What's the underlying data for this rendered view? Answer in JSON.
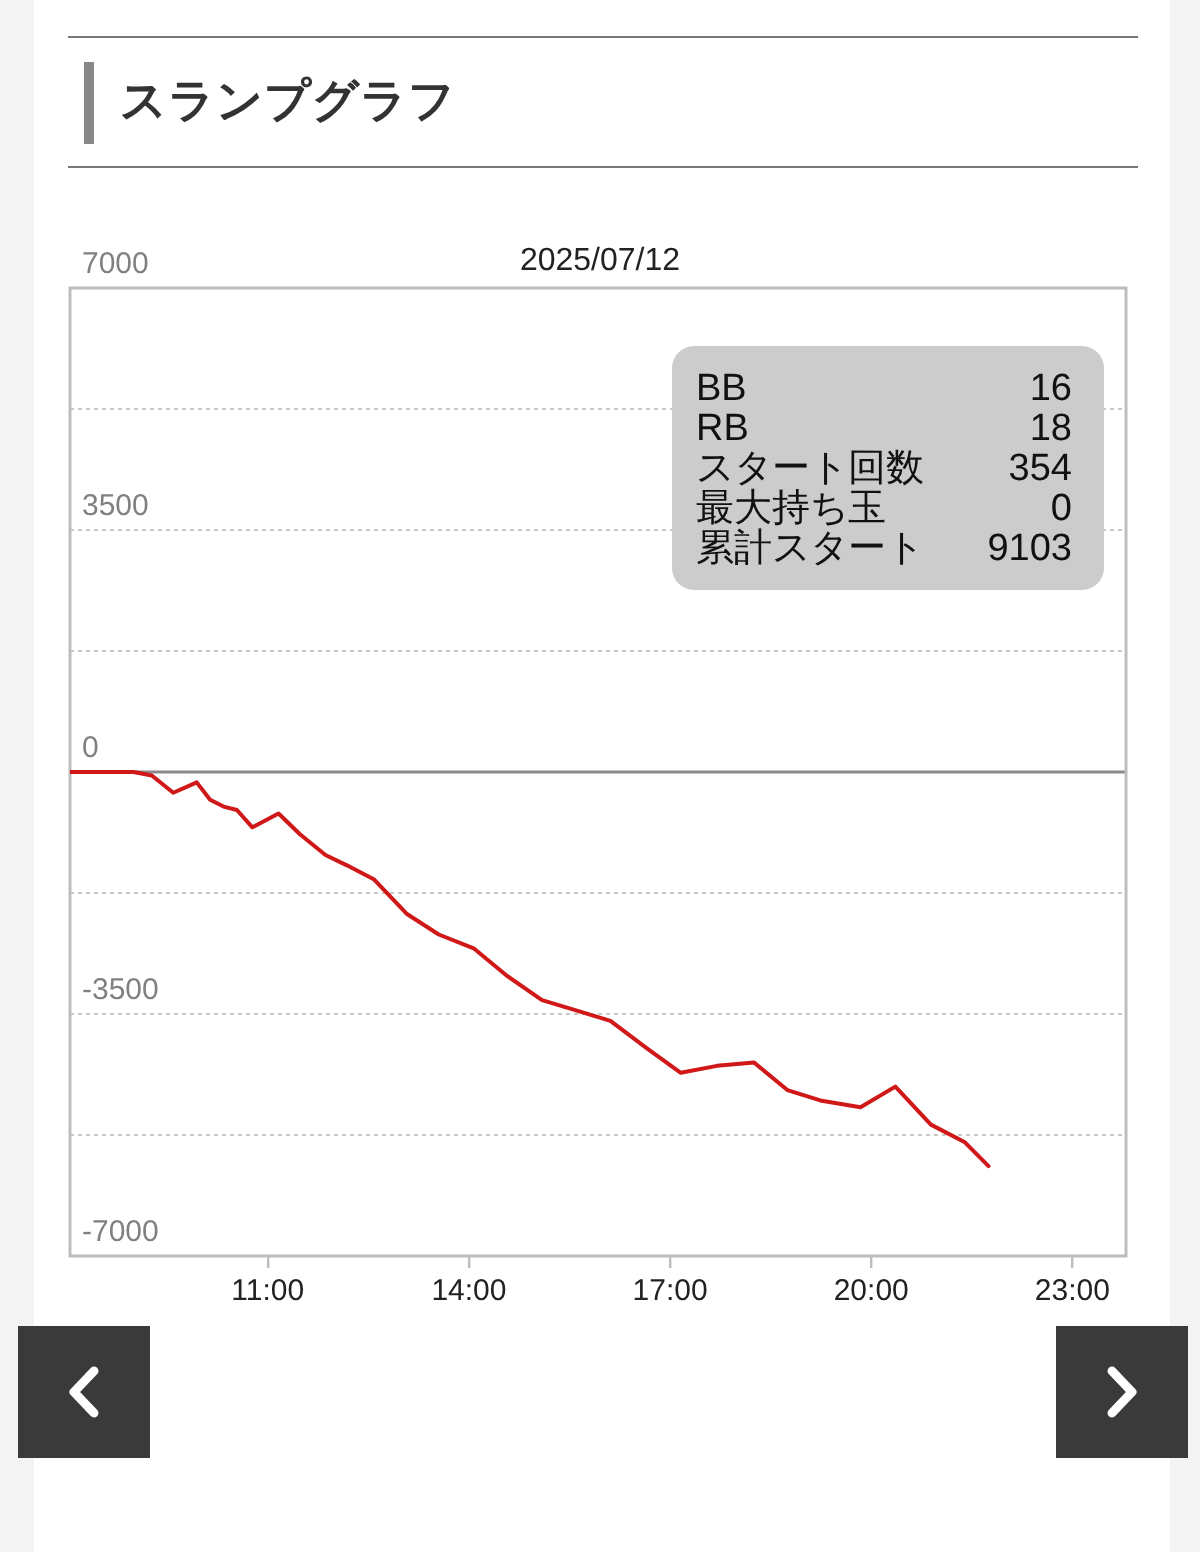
{
  "chart_data": {
    "type": "line",
    "title": "スランプグラフ",
    "subtitle": "2025/07/12",
    "x": [
      8.05,
      9.0,
      9.27,
      9.59,
      9.94,
      10.14,
      10.34,
      10.54,
      10.77,
      11.16,
      11.48,
      11.86,
      12.18,
      12.58,
      13.07,
      13.55,
      14.07,
      14.57,
      15.09,
      15.61,
      16.11,
      16.66,
      17.16,
      17.7,
      18.25,
      18.75,
      19.24,
      19.84,
      20.36,
      20.89,
      21.39,
      21.75
    ],
    "values": [
      0,
      0,
      -50,
      -300,
      -150,
      -400,
      -500,
      -550,
      -800,
      -600,
      -900,
      -1200,
      -1350,
      -1550,
      -2050,
      -2350,
      -2550,
      -2950,
      -3300,
      -3450,
      -3600,
      -4000,
      -4350,
      -4250,
      -4200,
      -4600,
      -4750,
      -4850,
      -4550,
      -5100,
      -5350,
      -5700
    ],
    "color": "#d01818",
    "xlim": [
      8.05,
      23.8
    ],
    "xticks": [
      {
        "value": 11,
        "label": "11:00"
      },
      {
        "value": 14,
        "label": "14:00"
      },
      {
        "value": 17,
        "label": "17:00"
      },
      {
        "value": 20,
        "label": "20:00"
      },
      {
        "value": 23,
        "label": "23:00"
      }
    ],
    "ylim": [
      -7000,
      7000
    ],
    "yticks": [
      7000,
      {
        "value": 5250,
        "label": null
      },
      3500,
      {
        "value": 1750,
        "label": null
      },
      0,
      {
        "value": -1750,
        "label": null
      },
      -3500,
      {
        "value": -5250,
        "label": null
      },
      -7000
    ],
    "grid": "y",
    "legend": false,
    "marker": "none",
    "line_style": "solid",
    "annotations": [
      "BB",
      "16",
      "RB",
      "18",
      "スタート回数",
      "354",
      "最大持ち玉",
      "0",
      "累計スタート",
      "9103"
    ]
  }
}
